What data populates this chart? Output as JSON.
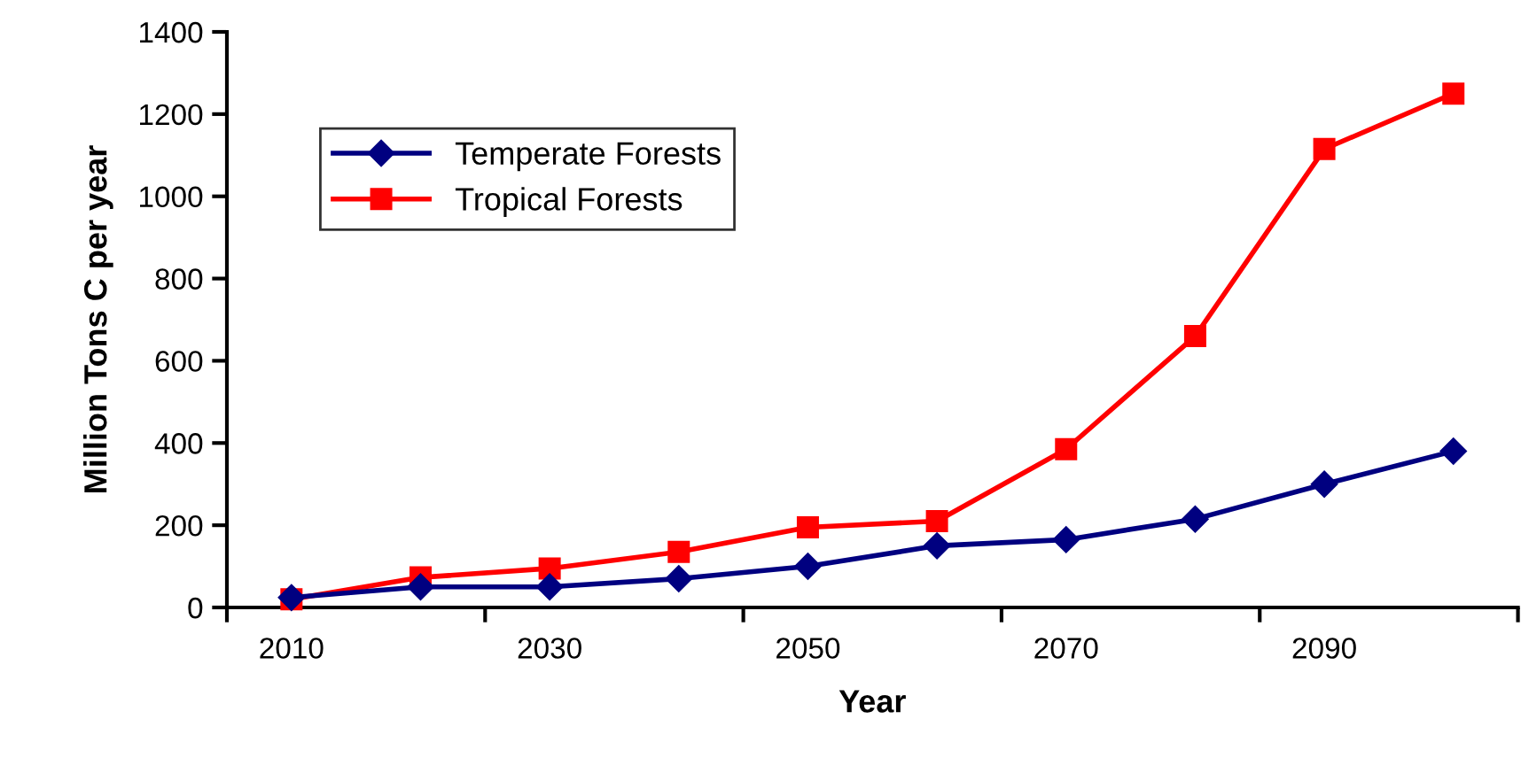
{
  "chart_data": {
    "type": "line",
    "xlabel": "Year",
    "ylabel": "Million Tons C per year",
    "categories": [
      "2010",
      null,
      "2030",
      null,
      "2050",
      null,
      "2070",
      null,
      "2090",
      null
    ],
    "series": [
      {
        "name": "Temperate Forests",
        "color": "#000080",
        "marker": "diamond",
        "values": [
          24,
          50,
          50,
          70,
          100,
          150,
          165,
          215,
          300,
          380
        ]
      },
      {
        "name": "Tropical Forests",
        "color": "#ff0000",
        "marker": "square",
        "values": [
          20,
          73,
          95,
          135,
          195,
          210,
          385,
          660,
          1115,
          1250
        ]
      }
    ],
    "ylim": [
      0,
      1400
    ],
    "yticks": [
      0,
      200,
      400,
      600,
      800,
      1000,
      1200,
      1400
    ],
    "grid": false,
    "legend": "top left"
  }
}
